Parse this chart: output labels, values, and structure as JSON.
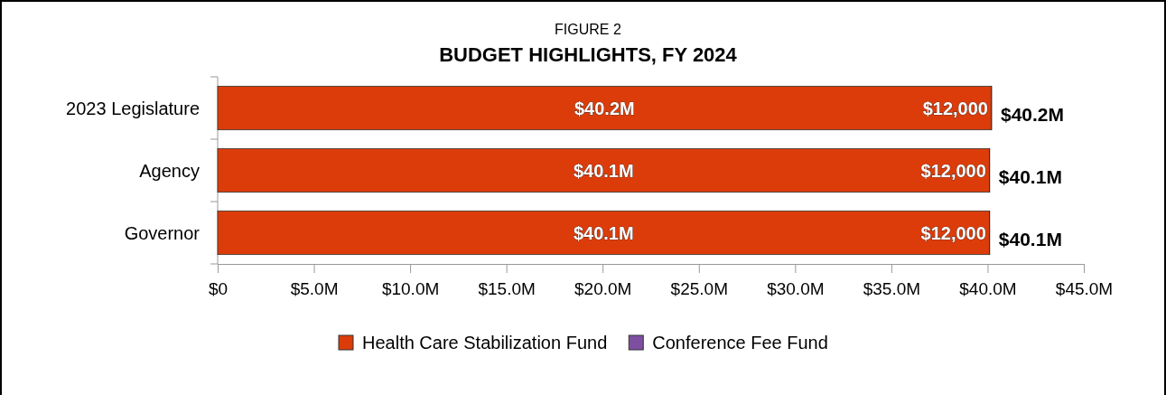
{
  "chart_data": {
    "type": "bar",
    "orientation": "horizontal",
    "stacked": true,
    "subtitle": "FIGURE 2",
    "title": "BUDGET HIGHLIGHTS, FY 2024",
    "categories": [
      "2023 Legislature",
      "Agency",
      "Governor"
    ],
    "series": [
      {
        "name": "Health Care Stabilization Fund",
        "color": "#dc3c0a",
        "values": [
          40200000,
          40100000,
          40100000
        ],
        "value_labels": [
          "$40.2M",
          "$40.1M",
          "$40.1M"
        ]
      },
      {
        "name": "Conference Fee Fund",
        "color": "#7e4fa0",
        "values": [
          12000,
          12000,
          12000
        ],
        "value_labels": [
          "$12,000",
          "$12,000",
          "$12,000"
        ]
      }
    ],
    "totals": [
      "$40.2M",
      "$40.1M",
      "$40.1M"
    ],
    "xlim": [
      0,
      45000000
    ],
    "xticks": [
      {
        "value": 0,
        "label": "$0"
      },
      {
        "value": 5000000,
        "label": "$5.0M"
      },
      {
        "value": 10000000,
        "label": "$10.0M"
      },
      {
        "value": 15000000,
        "label": "$15.0M"
      },
      {
        "value": 20000000,
        "label": "$20.0M"
      },
      {
        "value": 25000000,
        "label": "$25.0M"
      },
      {
        "value": 30000000,
        "label": "$30.0M"
      },
      {
        "value": 35000000,
        "label": "$35.0M"
      },
      {
        "value": 40000000,
        "label": "$40.0M"
      },
      {
        "value": 45000000,
        "label": "$45.0M"
      }
    ],
    "legend": "bottom"
  }
}
